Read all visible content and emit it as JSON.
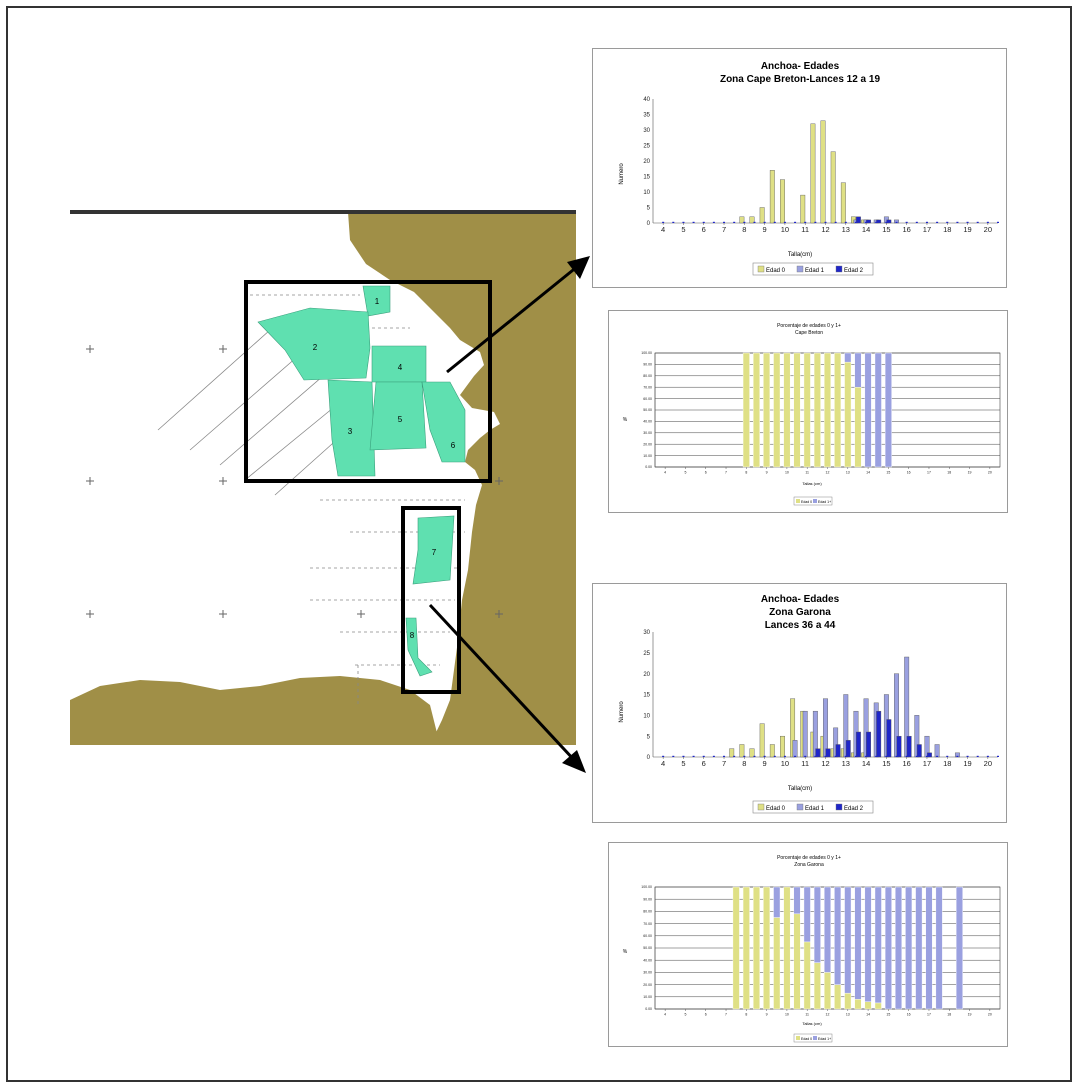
{
  "colors": {
    "sea": "#ffffff",
    "land": "#a08f47",
    "zone": "#5fe0b0",
    "edad0": "#dfe085",
    "edad1": "#9aa0e0",
    "edad2": "#1f26c8",
    "edad1plus": "#9aa0e0",
    "frame": "#000000"
  },
  "map": {
    "zone_labels": [
      "1",
      "2",
      "3",
      "4",
      "5",
      "6",
      "7",
      "8"
    ]
  },
  "chart_data": [
    {
      "type": "bar",
      "title": "Anchoa- Edades",
      "subtitle": "Zona Cape Breton-Lances 12 a 19",
      "xlabel": "Talla(cm)",
      "ylabel": "Numero",
      "ylim": [
        0,
        40
      ],
      "yticks": [
        0,
        5,
        10,
        15,
        20,
        25,
        30,
        35,
        40
      ],
      "categories": [
        "4",
        "5",
        "6",
        "7",
        "8",
        "9",
        "10",
        "11",
        "12",
        "13",
        "14",
        "15",
        "16",
        "17",
        "18",
        "19",
        "20"
      ],
      "x": [
        8.0,
        8.5,
        9.0,
        9.5,
        10.0,
        10.5,
        11.0,
        11.5,
        12.0,
        12.5,
        13.0,
        13.5,
        14.0,
        14.5,
        15.0,
        15.5
      ],
      "series": [
        {
          "name": "Edad 0",
          "color": "#dfe085",
          "values": [
            2,
            2,
            5,
            17,
            14,
            0,
            9,
            32,
            33,
            23,
            13,
            2,
            1,
            0,
            0,
            0
          ]
        },
        {
          "name": "Edad 1",
          "color": "#9aa0e0",
          "values": [
            0,
            0,
            0,
            0,
            0,
            0,
            0,
            0,
            0,
            0,
            0,
            1,
            1,
            1,
            2,
            1
          ]
        },
        {
          "name": "Edad 2",
          "color": "#1f26c8",
          "values": [
            0,
            0,
            0,
            0,
            0,
            0,
            0,
            0,
            0,
            0,
            0,
            2,
            1,
            1,
            1,
            0
          ]
        }
      ],
      "grid": false,
      "legend": "bottom"
    },
    {
      "type": "bar",
      "stacked": true,
      "percent": true,
      "title": "Porcentaje de edades 0 y 1+",
      "subtitle": "Cape Breton",
      "xlabel": "Tallas (cm)",
      "ylabel": "%",
      "ylim": [
        0,
        100
      ],
      "yticks": [
        "0.00",
        "10.00",
        "20.00",
        "30.00",
        "40.00",
        "50.00",
        "60.00",
        "70.00",
        "80.00",
        "90.00",
        "100.00"
      ],
      "categories": [
        "4",
        "5",
        "6",
        "7",
        "8",
        "9",
        "10",
        "11",
        "12",
        "13",
        "14",
        "15",
        "16",
        "17",
        "18",
        "19",
        "20"
      ],
      "x": [
        8.0,
        8.5,
        9.0,
        9.5,
        10.0,
        10.5,
        11.0,
        11.5,
        12.0,
        12.5,
        13.0,
        13.5,
        14.0,
        14.5,
        15.0
      ],
      "series": [
        {
          "name": "Edad 0",
          "color": "#dfe085",
          "values": [
            100,
            100,
            100,
            100,
            100,
            100,
            100,
            100,
            100,
            100,
            92,
            70,
            0,
            0,
            0
          ]
        },
        {
          "name": "Edad 1+",
          "color": "#9aa0e0",
          "values": [
            0,
            0,
            0,
            0,
            0,
            0,
            0,
            0,
            0,
            0,
            8,
            30,
            100,
            100,
            100
          ]
        }
      ],
      "grid": true,
      "legend": "bottom"
    },
    {
      "type": "bar",
      "title": "Anchoa- Edades",
      "subtitle": "Zona Garona",
      "subtitle2": "Lances 36 a 44",
      "xlabel": "Talla(cm)",
      "ylabel": "Numero",
      "ylim": [
        0,
        30
      ],
      "yticks": [
        0,
        5,
        10,
        15,
        20,
        25,
        30
      ],
      "categories": [
        "4",
        "5",
        "6",
        "7",
        "8",
        "9",
        "10",
        "11",
        "12",
        "13",
        "14",
        "15",
        "16",
        "17",
        "18",
        "19",
        "20"
      ],
      "x": [
        7.5,
        8.0,
        8.5,
        9.0,
        9.5,
        10.0,
        10.5,
        11.0,
        11.5,
        12.0,
        12.5,
        13.0,
        13.5,
        14.0,
        14.5,
        15.0,
        15.5,
        16.0,
        16.5,
        17.0,
        17.5,
        18.5
      ],
      "series": [
        {
          "name": "Edad 0",
          "color": "#dfe085",
          "values": [
            2,
            3,
            2,
            8,
            3,
            5,
            14,
            11,
            6,
            5,
            2,
            2,
            1,
            1,
            0,
            0,
            0,
            0,
            0,
            0,
            0,
            0
          ]
        },
        {
          "name": "Edad 1",
          "color": "#9aa0e0",
          "values": [
            0,
            0,
            0,
            0,
            0,
            0,
            4,
            11,
            11,
            14,
            7,
            15,
            11,
            14,
            13,
            15,
            20,
            24,
            10,
            5,
            3,
            1
          ]
        },
        {
          "name": "Edad 2",
          "color": "#1f26c8",
          "values": [
            0,
            0,
            0,
            0,
            0,
            0,
            0,
            0,
            2,
            2,
            3,
            4,
            6,
            6,
            11,
            9,
            5,
            5,
            3,
            1,
            0,
            0
          ]
        }
      ],
      "grid": false,
      "legend": "bottom"
    },
    {
      "type": "bar",
      "stacked": true,
      "percent": true,
      "title": "Porcentaje de edades 0 y 1+",
      "subtitle": "Zona Garona",
      "xlabel": "Tallas (cm)",
      "ylabel": "%",
      "ylim": [
        0,
        100
      ],
      "yticks": [
        "0.00",
        "10.00",
        "20.00",
        "30.00",
        "40.00",
        "50.00",
        "60.00",
        "70.00",
        "80.00",
        "90.00",
        "100.00"
      ],
      "categories": [
        "4",
        "5",
        "6",
        "7",
        "8",
        "9",
        "10",
        "11",
        "12",
        "13",
        "14",
        "15",
        "16",
        "17",
        "18",
        "19",
        "20"
      ],
      "x": [
        7.5,
        8.0,
        8.5,
        9.0,
        9.5,
        10.0,
        10.5,
        11.0,
        11.5,
        12.0,
        12.5,
        13.0,
        13.5,
        14.0,
        14.5,
        15.0,
        15.5,
        16.0,
        16.5,
        17.0,
        17.5,
        18.5
      ],
      "series": [
        {
          "name": "Edad 0",
          "color": "#dfe085",
          "values": [
            100,
            100,
            100,
            100,
            75,
            100,
            78,
            55,
            38,
            30,
            20,
            13,
            8,
            6,
            5,
            0,
            0,
            0,
            0,
            0,
            0,
            0
          ]
        },
        {
          "name": "Edad 1+",
          "color": "#9aa0e0",
          "values": [
            0,
            0,
            0,
            0,
            25,
            0,
            22,
            45,
            62,
            70,
            80,
            87,
            92,
            94,
            95,
            100,
            100,
            100,
            100,
            100,
            100,
            100
          ]
        }
      ],
      "grid": true,
      "legend": "bottom"
    }
  ]
}
